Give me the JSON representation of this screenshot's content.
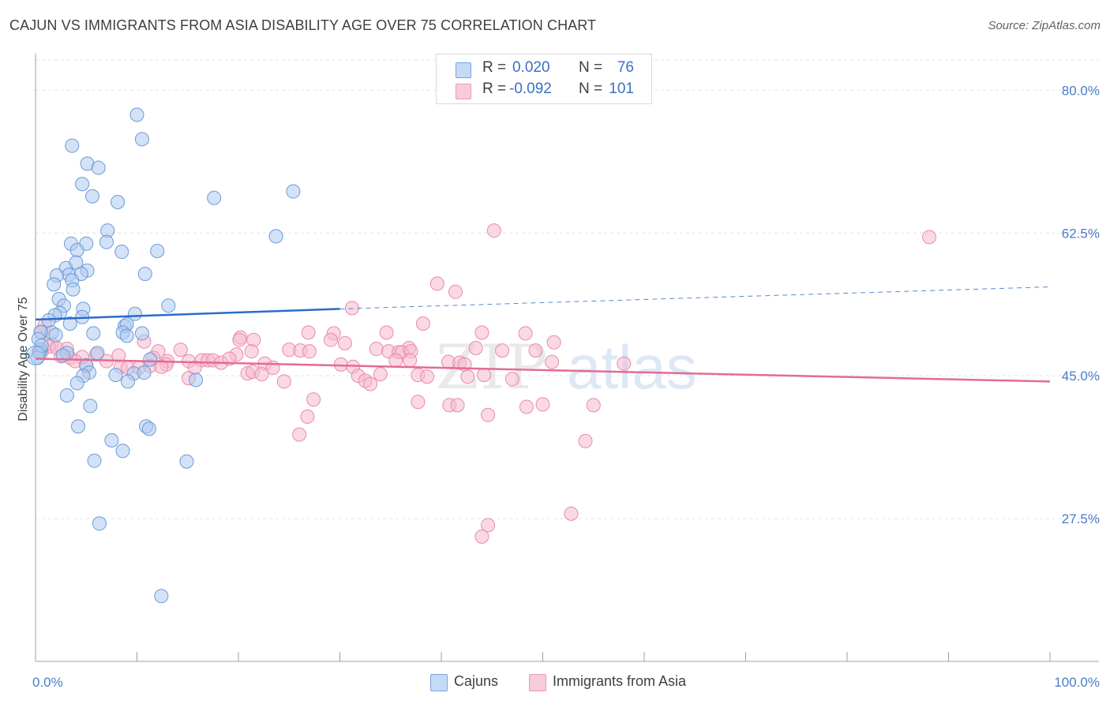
{
  "header": {
    "title": "CAJUN VS IMMIGRANTS FROM ASIA DISABILITY AGE OVER 75 CORRELATION CHART",
    "source": "Source: ZipAtlas.com"
  },
  "legend_top": {
    "rows": [
      {
        "r_label": "R =",
        "r_value": "0.020",
        "n_label": "N =",
        "n_value": "76"
      },
      {
        "r_label": "R =",
        "r_value": "-0.092",
        "n_label": "N =",
        "n_value": "101"
      }
    ]
  },
  "legend_bottom": {
    "items": [
      {
        "label": "Cajuns"
      },
      {
        "label": "Immigrants from Asia"
      }
    ]
  },
  "watermark": {
    "zip": "ZIP",
    "atlas": "atlas"
  },
  "colors": {
    "cajun_fill": "#aecbf0",
    "cajun_stroke": "#6d9ad8",
    "cajun_line": "#2b6cc9",
    "asia_fill": "#f5b9cd",
    "asia_stroke": "#e98aab",
    "asia_line": "#e46b97",
    "tick_label": "#4a7cc7",
    "grid": "#e3e3e3"
  },
  "chart_data": {
    "type": "scatter",
    "title": "CAJUN VS IMMIGRANTS FROM ASIA DISABILITY AGE OVER 75 CORRELATION CHART",
    "xlabel": "",
    "ylabel": "Disability Age Over 75",
    "xlim": [
      0,
      100
    ],
    "ylim": [
      10,
      84
    ],
    "x_tick_labels": [
      {
        "value": 0,
        "label": "0.0%"
      },
      {
        "value": 100,
        "label": "100.0%"
      }
    ],
    "y_tick_labels": [
      {
        "value": 27.5,
        "label": "27.5%"
      },
      {
        "value": 45.0,
        "label": "45.0%"
      },
      {
        "value": 62.5,
        "label": "62.5%"
      },
      {
        "value": 80.0,
        "label": "80.0%"
      }
    ],
    "x_minor_ticks": [
      0,
      10,
      20,
      30,
      40,
      50,
      60,
      70,
      80,
      90,
      100
    ],
    "grid": true,
    "legend_position": "top-center",
    "series": [
      {
        "name": "Cajuns",
        "r": 0.02,
        "n": 76,
        "trend": {
          "x0": 0,
          "y0": 51.9,
          "x1": 30,
          "y1": 53.2,
          "dashed_to_x": 100,
          "dashed_to_y": 55.9
        },
        "points": [
          [
            10,
            77.0
          ],
          [
            10.5,
            74.0
          ],
          [
            3.6,
            73.2
          ],
          [
            5.1,
            71.0
          ],
          [
            6.2,
            70.5
          ],
          [
            4.6,
            68.5
          ],
          [
            5.6,
            67.0
          ],
          [
            8.1,
            66.3
          ],
          [
            17.6,
            66.8
          ],
          [
            25.4,
            67.6
          ],
          [
            7.1,
            62.8
          ],
          [
            7.0,
            61.4
          ],
          [
            23.7,
            62.1
          ],
          [
            5.0,
            61.2
          ],
          [
            3.5,
            61.2
          ],
          [
            4.1,
            60.4
          ],
          [
            8.5,
            60.2
          ],
          [
            12.0,
            60.3
          ],
          [
            3.0,
            58.2
          ],
          [
            4.0,
            58.9
          ],
          [
            5.1,
            57.9
          ],
          [
            3.3,
            57.4
          ],
          [
            4.5,
            57.5
          ],
          [
            2.1,
            57.3
          ],
          [
            10.8,
            57.5
          ],
          [
            1.8,
            56.2
          ],
          [
            3.6,
            56.7
          ],
          [
            3.7,
            55.6
          ],
          [
            2.3,
            54.4
          ],
          [
            2.8,
            53.6
          ],
          [
            2.4,
            52.7
          ],
          [
            1.9,
            52.4
          ],
          [
            4.7,
            53.2
          ],
          [
            1.3,
            51.8
          ],
          [
            4.6,
            52.2
          ],
          [
            3.4,
            51.4
          ],
          [
            8.8,
            51.1
          ],
          [
            9.0,
            51.3
          ],
          [
            13.1,
            53.6
          ],
          [
            9.8,
            52.6
          ],
          [
            1.6,
            50.3
          ],
          [
            0.5,
            50.4
          ],
          [
            2.0,
            50.0
          ],
          [
            0.3,
            49.5
          ],
          [
            8.6,
            50.3
          ],
          [
            10.5,
            50.2
          ],
          [
            5.7,
            50.2
          ],
          [
            9.0,
            49.9
          ],
          [
            0.5,
            48.2
          ],
          [
            0.4,
            47.9
          ],
          [
            3.1,
            47.8
          ],
          [
            6.1,
            47.8
          ],
          [
            11.3,
            47.0
          ],
          [
            5.0,
            46.3
          ],
          [
            5.3,
            45.4
          ],
          [
            7.9,
            45.1
          ],
          [
            9.7,
            45.3
          ],
          [
            10.7,
            45.4
          ],
          [
            4.7,
            45.0
          ],
          [
            4.1,
            44.1
          ],
          [
            15.8,
            44.5
          ],
          [
            9.1,
            44.3
          ],
          [
            3.1,
            42.6
          ],
          [
            5.4,
            41.3
          ],
          [
            10.9,
            38.8
          ],
          [
            11.2,
            38.5
          ],
          [
            4.2,
            38.8
          ],
          [
            7.5,
            37.1
          ],
          [
            8.6,
            35.8
          ],
          [
            5.8,
            34.6
          ],
          [
            14.9,
            34.5
          ],
          [
            6.3,
            26.9
          ],
          [
            12.4,
            18.0
          ],
          [
            0.2,
            47.2
          ],
          [
            0.6,
            48.7
          ],
          [
            2.7,
            47.5
          ]
        ]
      },
      {
        "name": "Immigrants from Asia",
        "r": -0.092,
        "n": 101,
        "trend": {
          "x0": 0,
          "y0": 47.1,
          "x1": 100,
          "y1": 44.3
        },
        "points": [
          [
            45.2,
            62.8
          ],
          [
            88.1,
            62.0
          ],
          [
            39.6,
            56.3
          ],
          [
            41.4,
            55.3
          ],
          [
            31.2,
            53.3
          ],
          [
            38.2,
            51.4
          ],
          [
            0.9,
            51.2
          ],
          [
            0.6,
            50.3
          ],
          [
            26.9,
            50.3
          ],
          [
            29.4,
            50.2
          ],
          [
            34.6,
            50.3
          ],
          [
            44.0,
            50.3
          ],
          [
            48.3,
            50.2
          ],
          [
            20.2,
            49.7
          ],
          [
            20.1,
            49.4
          ],
          [
            21.5,
            49.4
          ],
          [
            29.1,
            49.4
          ],
          [
            30.5,
            49.0
          ],
          [
            51.1,
            49.1
          ],
          [
            10.7,
            49.2
          ],
          [
            1.6,
            48.9
          ],
          [
            1.3,
            48.6
          ],
          [
            2.1,
            48.4
          ],
          [
            3.1,
            48.3
          ],
          [
            14.3,
            48.2
          ],
          [
            21.3,
            48.0
          ],
          [
            25.0,
            48.2
          ],
          [
            26.1,
            48.1
          ],
          [
            27.0,
            48.0
          ],
          [
            33.6,
            48.3
          ],
          [
            36.8,
            48.4
          ],
          [
            34.8,
            48.0
          ],
          [
            35.8,
            47.9
          ],
          [
            36.1,
            47.9
          ],
          [
            37.0,
            48.0
          ],
          [
            43.4,
            48.4
          ],
          [
            46.0,
            48.1
          ],
          [
            49.3,
            48.1
          ],
          [
            12.1,
            48.0
          ],
          [
            19.8,
            47.6
          ],
          [
            6.0,
            47.6
          ],
          [
            4.6,
            47.3
          ],
          [
            8.2,
            47.5
          ],
          [
            0.3,
            47.9
          ],
          [
            0.6,
            47.9
          ],
          [
            2.5,
            47.4
          ],
          [
            3.4,
            47.2
          ],
          [
            3.9,
            46.8
          ],
          [
            11.6,
            47.2
          ],
          [
            13.0,
            46.8
          ],
          [
            7.0,
            46.8
          ],
          [
            12.9,
            46.4
          ],
          [
            15.1,
            46.8
          ],
          [
            16.4,
            46.9
          ],
          [
            17.0,
            46.9
          ],
          [
            17.5,
            46.9
          ],
          [
            18.3,
            46.6
          ],
          [
            19.1,
            47.1
          ],
          [
            22.6,
            46.5
          ],
          [
            23.4,
            46.0
          ],
          [
            30.1,
            46.4
          ],
          [
            31.3,
            46.1
          ],
          [
            35.5,
            46.9
          ],
          [
            36.9,
            46.9
          ],
          [
            40.7,
            46.7
          ],
          [
            41.8,
            46.6
          ],
          [
            42.3,
            46.4
          ],
          [
            50.9,
            46.7
          ],
          [
            58.0,
            46.5
          ],
          [
            5.0,
            46.2
          ],
          [
            8.4,
            46.1
          ],
          [
            9.1,
            46.0
          ],
          [
            10.2,
            46.0
          ],
          [
            11.3,
            46.2
          ],
          [
            12.4,
            46.1
          ],
          [
            15.7,
            46.0
          ],
          [
            20.9,
            45.3
          ],
          [
            21.4,
            45.5
          ],
          [
            22.3,
            45.2
          ],
          [
            24.5,
            44.3
          ],
          [
            31.8,
            45.0
          ],
          [
            32.5,
            44.4
          ],
          [
            33.0,
            44.0
          ],
          [
            34.0,
            45.2
          ],
          [
            37.7,
            45.1
          ],
          [
            38.6,
            44.9
          ],
          [
            42.6,
            44.9
          ],
          [
            44.2,
            45.1
          ],
          [
            47.0,
            44.6
          ],
          [
            15.1,
            44.7
          ],
          [
            27.4,
            42.1
          ],
          [
            37.7,
            41.8
          ],
          [
            40.8,
            41.4
          ],
          [
            41.6,
            41.4
          ],
          [
            48.4,
            41.2
          ],
          [
            50.0,
            41.5
          ],
          [
            55.0,
            41.4
          ],
          [
            26.8,
            40.0
          ],
          [
            44.6,
            40.2
          ],
          [
            26.0,
            37.8
          ],
          [
            54.2,
            37.0
          ]
        ],
        "outliers_low": [
          [
            52.8,
            28.1
          ],
          [
            44.6,
            26.7
          ],
          [
            44.0,
            25.3
          ]
        ]
      }
    ]
  }
}
